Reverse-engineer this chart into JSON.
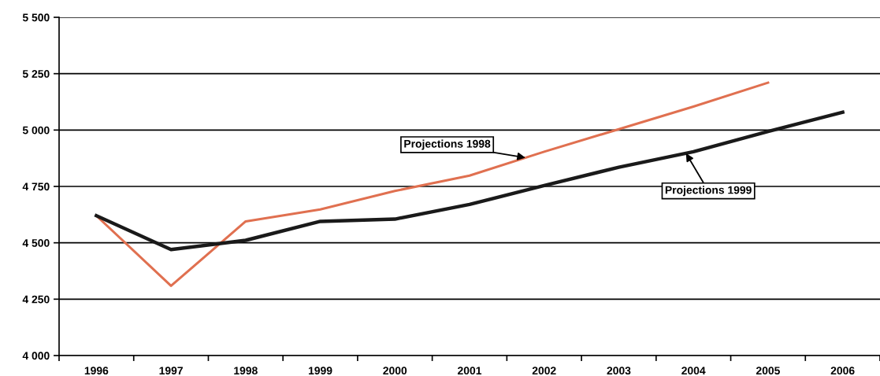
{
  "chart_data": {
    "type": "line",
    "categories": [
      "1996",
      "1997",
      "1998",
      "1999",
      "2000",
      "2001",
      "2002",
      "2003",
      "2004",
      "2005",
      "2006"
    ],
    "series": [
      {
        "name": "Projections 1998",
        "color": "#e07050",
        "values": [
          4620,
          4309,
          4595,
          4648,
          4730,
          4798,
          4904,
          5004,
          5104,
          5210,
          null
        ]
      },
      {
        "name": "Projections 1999",
        "color": "#1a1a1a",
        "values": [
          4620,
          4470,
          4511,
          4595,
          4605,
          4670,
          4754,
          4835,
          4904,
          4994,
          5079
        ]
      }
    ],
    "ylim": [
      4000,
      5500
    ],
    "yticks": [
      {
        "value": 4000,
        "label": "4 000"
      },
      {
        "value": 4250,
        "label": "4 250"
      },
      {
        "value": 4500,
        "label": "4 500"
      },
      {
        "value": 4750,
        "label": "4 750"
      },
      {
        "value": 5000,
        "label": "5 000"
      },
      {
        "value": 5250,
        "label": "5 250"
      },
      {
        "value": 5500,
        "label": "5 500"
      }
    ],
    "grid": "y",
    "legend": false,
    "marker": "none",
    "line_style": "solid"
  }
}
